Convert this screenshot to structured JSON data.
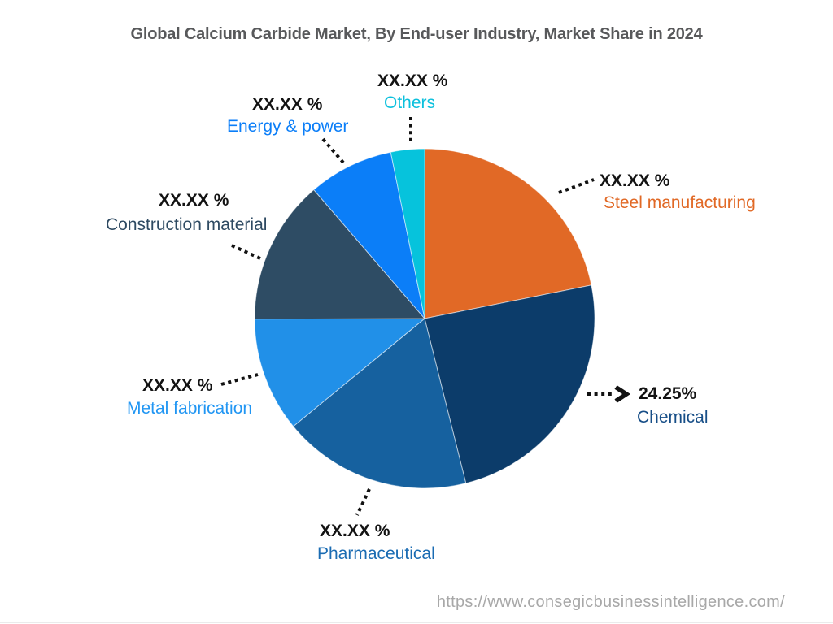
{
  "title": "Global Calcium Carbide Market, By End-user Industry, Market Share in 2024",
  "footer": {
    "url": "https://www.consegicbusinessintelligence.com/"
  },
  "chart_data": {
    "type": "pie",
    "title": "Global Calcium Carbide Market, By End-user Industry, Market Share in 2024",
    "start_angle_deg": 0,
    "direction": "clockwise",
    "segments": [
      {
        "label": "Steel manufacturing",
        "value_text": "XX.XX %",
        "share_pct": 21.85,
        "color": "#e16926",
        "label_color": "#e16926"
      },
      {
        "label": "Chemical",
        "value_text": "24.25%",
        "share_pct": 24.25,
        "color": "#0c3c6a",
        "label_color": "#174e87"
      },
      {
        "label": "Pharmaceutical",
        "value_text": "XX.XX %",
        "share_pct": 17.95,
        "color": "#16619f",
        "label_color": "#1b6cb3"
      },
      {
        "label": "Metal fabrication",
        "value_text": "XX.XX %",
        "share_pct": 10.9,
        "color": "#2190e8",
        "label_color": "#2196f3"
      },
      {
        "label": "Construction material",
        "value_text": "XX.XX %",
        "share_pct": 13.75,
        "color": "#2e4c64",
        "label_color": "#2e4a62"
      },
      {
        "label": "Energy & power",
        "value_text": "XX.XX %",
        "share_pct": 8.1,
        "color": "#0b7ef8",
        "label_color": "#0b7ef8"
      },
      {
        "label": "Others",
        "value_text": "XX.XX %",
        "share_pct": 3.2,
        "color": "#06c3dc",
        "label_color": "#0cc0dd"
      }
    ]
  }
}
